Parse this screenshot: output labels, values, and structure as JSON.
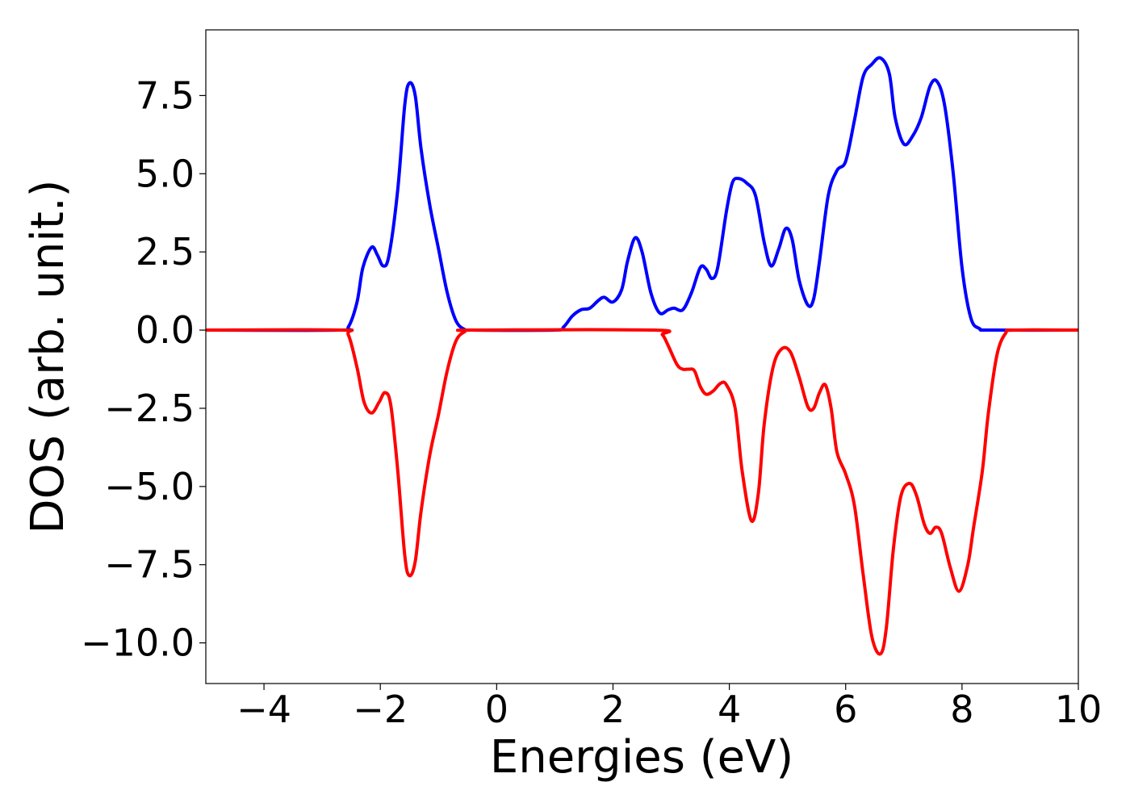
{
  "chart_data": {
    "type": "line",
    "title": "",
    "xlabel": "Energies (eV)",
    "ylabel": "DOS (arb. unit.)",
    "xlim": [
      -5,
      10
    ],
    "ylim": [
      -11.3,
      9.6
    ],
    "xticks": [
      -4,
      -2,
      0,
      2,
      4,
      6,
      8,
      10
    ],
    "xtick_labels": [
      "−4",
      "−2",
      "0",
      "2",
      "4",
      "6",
      "8",
      "10"
    ],
    "yticks": [
      7.5,
      5.0,
      2.5,
      0.0,
      -2.5,
      -5.0,
      -7.5,
      -10.0
    ],
    "ytick_labels": [
      "7.5",
      "5.0",
      "2.5",
      "0.0",
      "−2.5",
      "−5.0",
      "−7.5",
      "−10.0"
    ],
    "grid": false,
    "legend": "none",
    "series": [
      {
        "color": "#0000ff",
        "points": [
          [
            -5,
            0
          ],
          [
            -2.7,
            0
          ],
          [
            -2.55,
            0.1
          ],
          [
            -2.4,
            0.9
          ],
          [
            -2.3,
            2.0
          ],
          [
            -2.15,
            2.65
          ],
          [
            -2.05,
            2.4
          ],
          [
            -1.95,
            2.05
          ],
          [
            -1.85,
            2.4
          ],
          [
            -1.7,
            4.5
          ],
          [
            -1.58,
            7.2
          ],
          [
            -1.5,
            7.9
          ],
          [
            -1.4,
            7.5
          ],
          [
            -1.3,
            5.8
          ],
          [
            -1.15,
            4.0
          ],
          [
            -1.0,
            2.6
          ],
          [
            -0.85,
            1.2
          ],
          [
            -0.7,
            0.3
          ],
          [
            -0.55,
            0.02
          ],
          [
            -0.4,
            0
          ],
          [
            1.0,
            0
          ],
          [
            1.15,
            0.1
          ],
          [
            1.3,
            0.45
          ],
          [
            1.45,
            0.65
          ],
          [
            1.6,
            0.7
          ],
          [
            1.75,
            0.95
          ],
          [
            1.85,
            1.05
          ],
          [
            2.0,
            0.9
          ],
          [
            2.15,
            1.3
          ],
          [
            2.25,
            2.2
          ],
          [
            2.38,
            2.95
          ],
          [
            2.5,
            2.5
          ],
          [
            2.65,
            1.2
          ],
          [
            2.8,
            0.55
          ],
          [
            2.95,
            0.65
          ],
          [
            3.05,
            0.7
          ],
          [
            3.2,
            0.65
          ],
          [
            3.35,
            1.2
          ],
          [
            3.5,
            2.0
          ],
          [
            3.6,
            1.95
          ],
          [
            3.7,
            1.65
          ],
          [
            3.8,
            2.0
          ],
          [
            3.95,
            3.8
          ],
          [
            4.05,
            4.7
          ],
          [
            4.15,
            4.85
          ],
          [
            4.3,
            4.7
          ],
          [
            4.45,
            4.3
          ],
          [
            4.6,
            2.8
          ],
          [
            4.72,
            2.05
          ],
          [
            4.85,
            2.6
          ],
          [
            4.97,
            3.25
          ],
          [
            5.08,
            2.9
          ],
          [
            5.2,
            1.6
          ],
          [
            5.35,
            0.8
          ],
          [
            5.45,
            1.0
          ],
          [
            5.55,
            2.2
          ],
          [
            5.7,
            4.3
          ],
          [
            5.85,
            5.1
          ],
          [
            6.0,
            5.4
          ],
          [
            6.15,
            6.7
          ],
          [
            6.3,
            8.1
          ],
          [
            6.45,
            8.5
          ],
          [
            6.6,
            8.7
          ],
          [
            6.75,
            8.2
          ],
          [
            6.85,
            6.8
          ],
          [
            7.0,
            5.95
          ],
          [
            7.15,
            6.2
          ],
          [
            7.3,
            6.8
          ],
          [
            7.45,
            7.8
          ],
          [
            7.57,
            7.95
          ],
          [
            7.7,
            7.2
          ],
          [
            7.85,
            5.0
          ],
          [
            8.0,
            2.0
          ],
          [
            8.15,
            0.4
          ],
          [
            8.3,
            0.05
          ],
          [
            8.5,
            0
          ],
          [
            10,
            0
          ]
        ]
      },
      {
        "color": "#ff0000",
        "points": [
          [
            -5,
            0
          ],
          [
            -2.7,
            0
          ],
          [
            -2.55,
            -0.15
          ],
          [
            -2.4,
            -1.2
          ],
          [
            -2.28,
            -2.3
          ],
          [
            -2.15,
            -2.65
          ],
          [
            -2.02,
            -2.3
          ],
          [
            -1.92,
            -2.0
          ],
          [
            -1.82,
            -2.4
          ],
          [
            -1.7,
            -4.5
          ],
          [
            -1.58,
            -7.2
          ],
          [
            -1.5,
            -7.85
          ],
          [
            -1.4,
            -7.4
          ],
          [
            -1.3,
            -5.8
          ],
          [
            -1.15,
            -4.0
          ],
          [
            -1.0,
            -2.7
          ],
          [
            -0.85,
            -1.3
          ],
          [
            -0.7,
            -0.35
          ],
          [
            -0.55,
            -0.05
          ],
          [
            -0.4,
            0
          ],
          [
            2.7,
            0
          ],
          [
            2.85,
            -0.15
          ],
          [
            2.95,
            -0.5
          ],
          [
            3.1,
            -1.1
          ],
          [
            3.2,
            -1.25
          ],
          [
            3.3,
            -1.25
          ],
          [
            3.4,
            -1.3
          ],
          [
            3.5,
            -1.8
          ],
          [
            3.6,
            -2.05
          ],
          [
            3.72,
            -1.95
          ],
          [
            3.85,
            -1.7
          ],
          [
            3.95,
            -1.75
          ],
          [
            4.1,
            -2.5
          ],
          [
            4.22,
            -4.5
          ],
          [
            4.38,
            -6.1
          ],
          [
            4.5,
            -5.2
          ],
          [
            4.6,
            -3.0
          ],
          [
            4.75,
            -1.2
          ],
          [
            4.9,
            -0.6
          ],
          [
            5.05,
            -0.7
          ],
          [
            5.2,
            -1.5
          ],
          [
            5.35,
            -2.45
          ],
          [
            5.45,
            -2.5
          ],
          [
            5.55,
            -2.0
          ],
          [
            5.65,
            -1.75
          ],
          [
            5.75,
            -2.5
          ],
          [
            5.85,
            -3.9
          ],
          [
            6.0,
            -4.6
          ],
          [
            6.15,
            -5.6
          ],
          [
            6.3,
            -7.8
          ],
          [
            6.45,
            -9.8
          ],
          [
            6.6,
            -10.35
          ],
          [
            6.7,
            -9.5
          ],
          [
            6.82,
            -7.0
          ],
          [
            6.95,
            -5.3
          ],
          [
            7.1,
            -4.9
          ],
          [
            7.22,
            -5.3
          ],
          [
            7.35,
            -6.2
          ],
          [
            7.45,
            -6.5
          ],
          [
            7.55,
            -6.3
          ],
          [
            7.65,
            -6.5
          ],
          [
            7.8,
            -7.6
          ],
          [
            7.95,
            -8.35
          ],
          [
            8.1,
            -7.5
          ],
          [
            8.2,
            -6.3
          ],
          [
            8.35,
            -4.5
          ],
          [
            8.45,
            -2.7
          ],
          [
            8.6,
            -0.8
          ],
          [
            8.75,
            -0.1
          ],
          [
            8.9,
            0
          ],
          [
            10,
            0
          ]
        ]
      }
    ]
  }
}
